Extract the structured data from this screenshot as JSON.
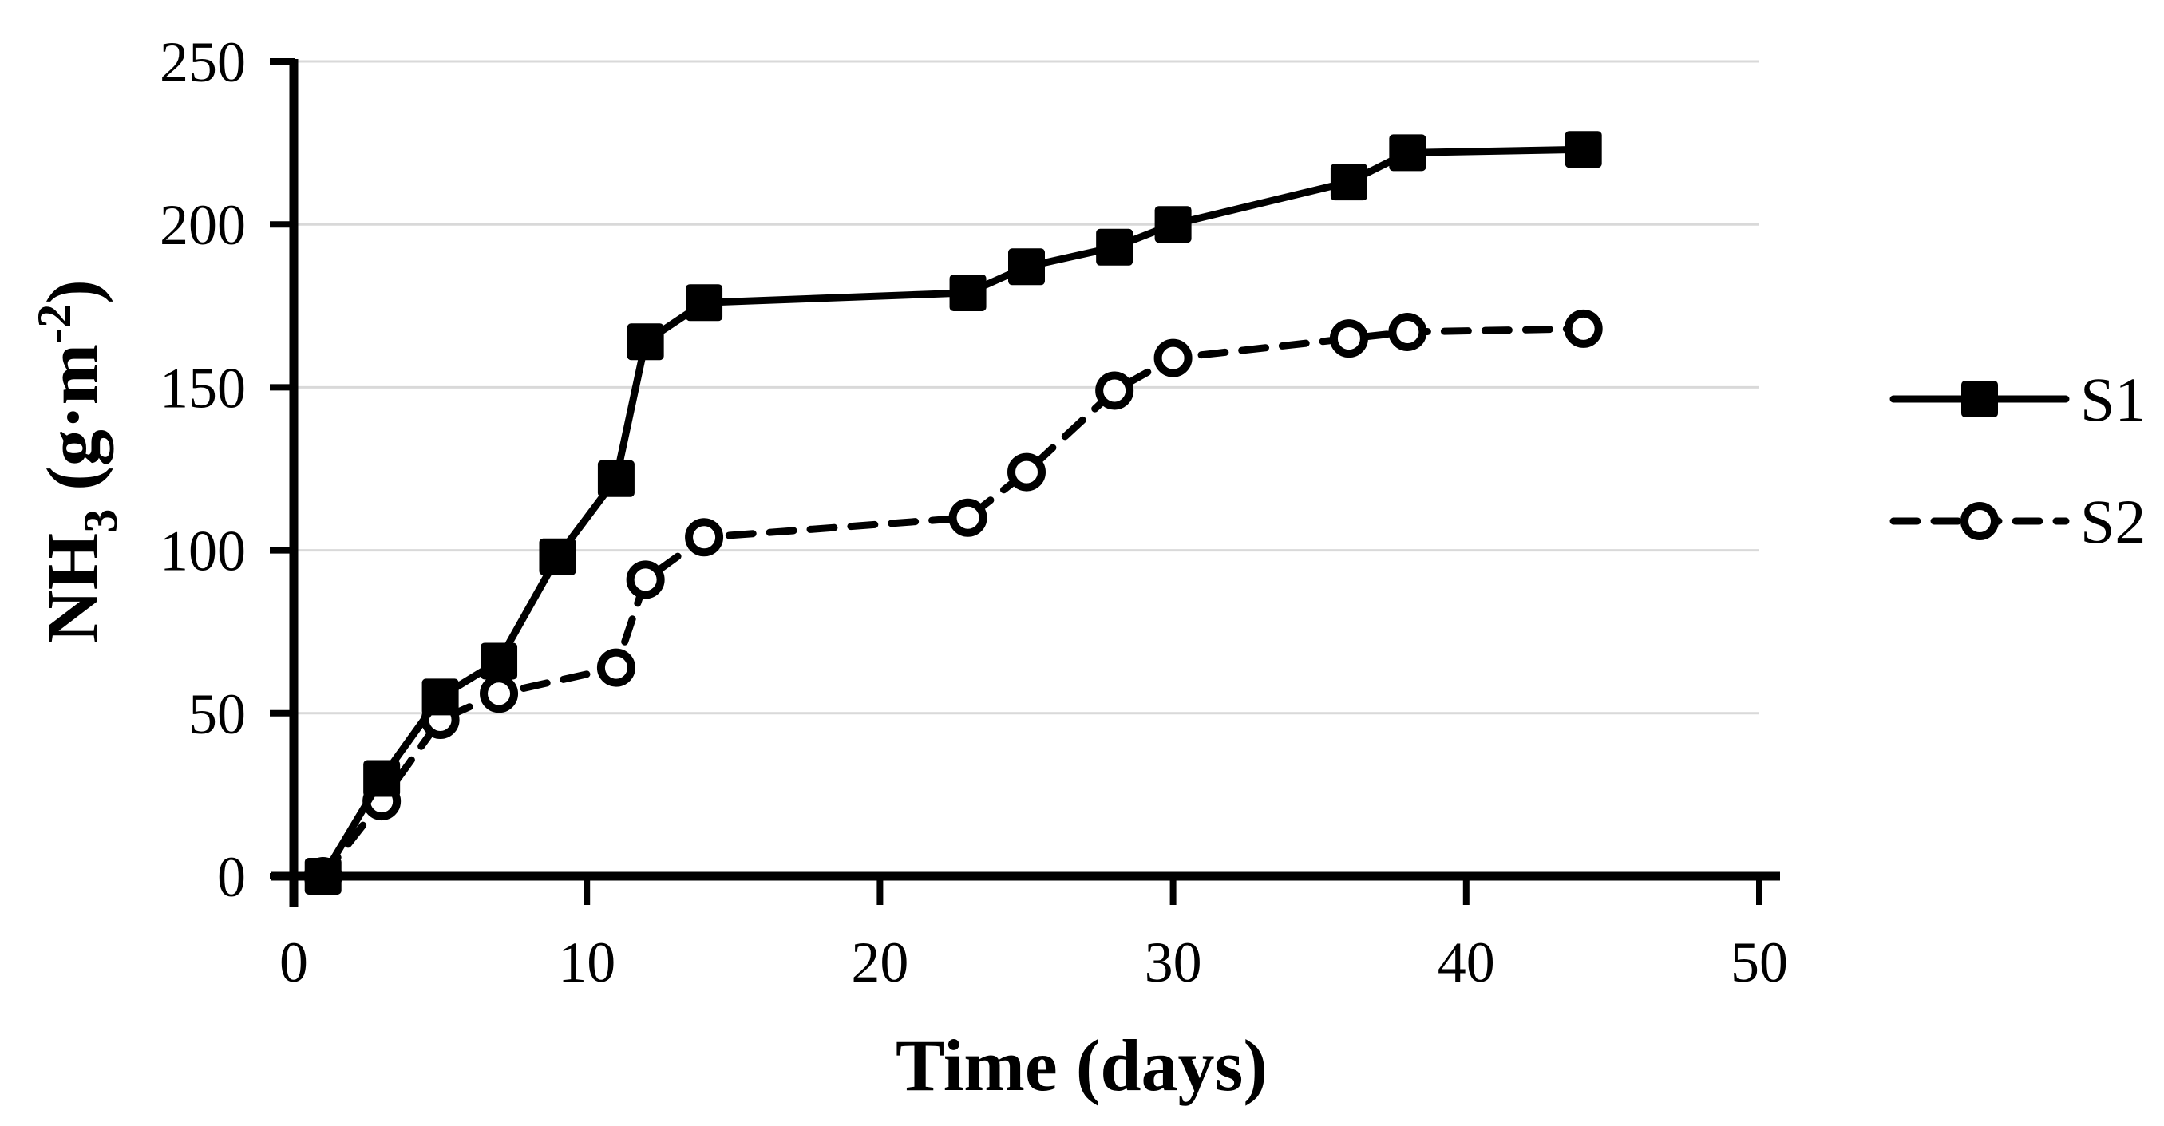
{
  "figure": {
    "background": "#ffffff",
    "text_color": "#000000"
  },
  "chart_data": {
    "type": "line",
    "title": "",
    "xlabel": "Time (days)",
    "ylabel": "NH3 (g·m-2)",
    "ylabel_rich": [
      {
        "t": "NH",
        "style": "normal"
      },
      {
        "t": "3",
        "style": "sub"
      },
      {
        "t": " (g·m",
        "style": "normal"
      },
      {
        "t": "-2",
        "style": "sup"
      },
      {
        "t": ")",
        "style": "normal"
      }
    ],
    "xlim": [
      0,
      50
    ],
    "ylim": [
      0,
      250
    ],
    "xticks": [
      0,
      10,
      20,
      30,
      40,
      50
    ],
    "yticks": [
      0,
      50,
      100,
      150,
      200,
      250
    ],
    "grid": "horizontal",
    "grid_color": "#d9d9d9",
    "axis_color": "#000000",
    "legend_position": "right-center",
    "series": [
      {
        "name": "S1",
        "color": "#000000",
        "line_style": "solid",
        "marker": "filled-square",
        "x": [
          1,
          3,
          5,
          7,
          9,
          11,
          12,
          14,
          23,
          25,
          28,
          30,
          36,
          38,
          44
        ],
        "y": [
          0,
          30,
          55,
          66,
          98,
          122,
          164,
          176,
          179,
          187,
          193,
          200,
          213,
          222,
          223
        ]
      },
      {
        "name": "S2",
        "color": "#000000",
        "line_style": "dashed",
        "marker": "open-circle",
        "x": [
          1,
          3,
          5,
          7,
          11,
          12,
          14,
          23,
          25,
          28,
          30,
          36,
          38,
          44
        ],
        "y": [
          0,
          23,
          48,
          56,
          64,
          91,
          104,
          110,
          124,
          149,
          159,
          165,
          167,
          168
        ]
      }
    ]
  }
}
